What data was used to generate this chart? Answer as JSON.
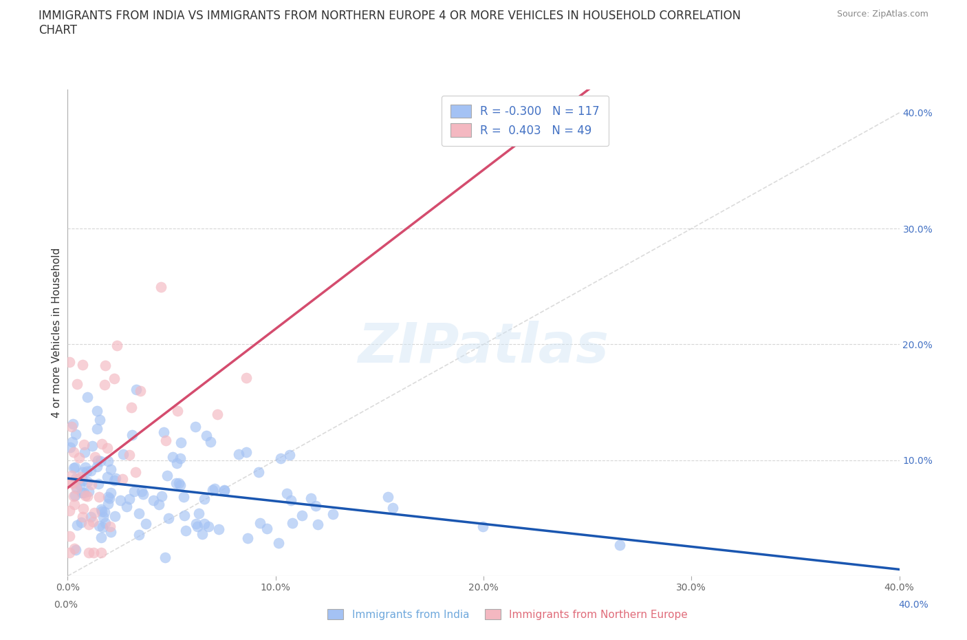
{
  "title_line1": "IMMIGRANTS FROM INDIA VS IMMIGRANTS FROM NORTHERN EUROPE 4 OR MORE VEHICLES IN HOUSEHOLD CORRELATION",
  "title_line2": "CHART",
  "source": "Source: ZipAtlas.com",
  "ylabel": "4 or more Vehicles in Household",
  "legend_label_1": "Immigrants from India",
  "legend_label_2": "Immigrants from Northern Europe",
  "r1": -0.3,
  "n1": 117,
  "r2": 0.403,
  "n2": 49,
  "color1": "#a4c2f4",
  "color2": "#f4b8c1",
  "trendline1_color": "#1a56b0",
  "trendline2_color": "#d44c6e",
  "refline_color": "#cccccc",
  "xlim": [
    0.0,
    0.4
  ],
  "ylim": [
    0.0,
    0.42
  ],
  "xticks": [
    0.0,
    0.1,
    0.2,
    0.3,
    0.4
  ],
  "yticks_right": [
    0.1,
    0.2,
    0.3,
    0.4
  ],
  "grid_color": "#cccccc",
  "background_color": "#ffffff",
  "watermark": "ZIPatlas",
  "title_fontsize": 12,
  "axis_label_fontsize": 11,
  "tick_fontsize": 10,
  "legend_fontsize": 12,
  "right_tick_color": "#4472c4",
  "bottom_label_color_1": "#6fa8dc",
  "bottom_label_color_2": "#f4b8c1"
}
